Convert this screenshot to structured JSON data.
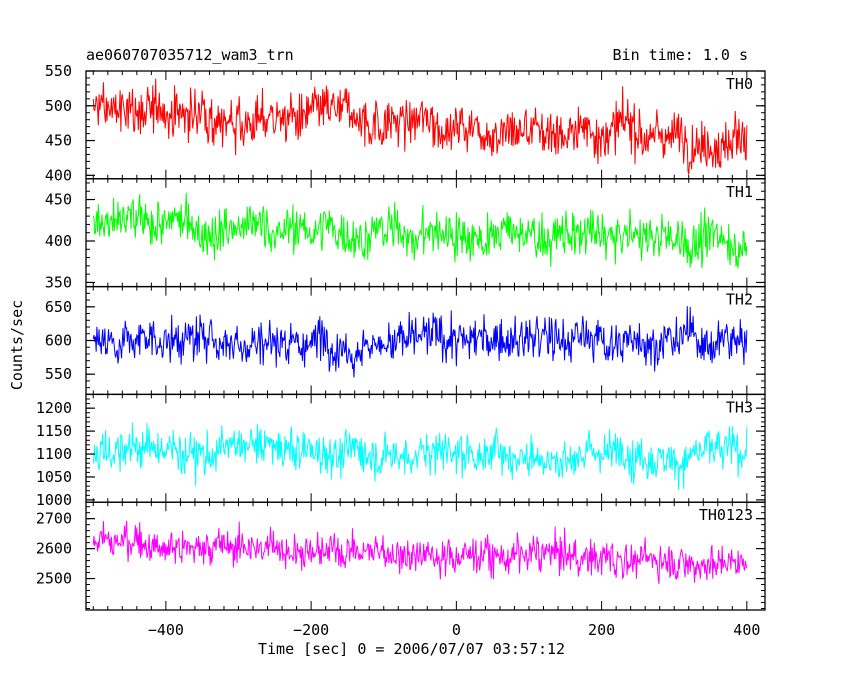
{
  "chart_data": {
    "type": "line",
    "title": "ae060707035712_wam3_trn",
    "subtitle": "Bin time: 1.0 s",
    "xlabel": "Time [sec] 0 = 2006/07/07 03:57:12",
    "ylabel": "Counts/sec",
    "xlim": [
      -510,
      425
    ],
    "x_ticks": [
      -400,
      -200,
      0,
      200,
      400
    ],
    "x_range": [
      -500,
      400
    ],
    "bin_time": 1.0,
    "panels": [
      {
        "name": "TH0",
        "color": "#ff0000",
        "ylim": [
          395,
          550
        ],
        "y_ticks": [
          400,
          450,
          500,
          550
        ],
        "mean_start": 495,
        "mean_end": 455,
        "spread": 32
      },
      {
        "name": "TH1",
        "color": "#00ff00",
        "ylim": [
          345,
          475
        ],
        "y_ticks": [
          350,
          400,
          450
        ],
        "mean_start": 418,
        "mean_end": 400,
        "spread": 25
      },
      {
        "name": "TH2",
        "color": "#0000ff",
        "ylim": [
          520,
          680
        ],
        "y_ticks": [
          550,
          600,
          650
        ],
        "mean_start": 602,
        "mean_end": 600,
        "spread": 30
      },
      {
        "name": "TH3",
        "color": "#00ffff",
        "ylim": [
          995,
          1230
        ],
        "y_ticks": [
          1000,
          1050,
          1100,
          1150,
          1200
        ],
        "mean_start": 1112,
        "mean_end": 1100,
        "spread": 42
      },
      {
        "name": "TH0123",
        "color": "#ff00ff",
        "ylim": [
          2395,
          2755
        ],
        "y_ticks": [
          2500,
          2600,
          2700
        ],
        "mean_start": 2625,
        "mean_end": 2555,
        "spread": 55
      }
    ]
  }
}
